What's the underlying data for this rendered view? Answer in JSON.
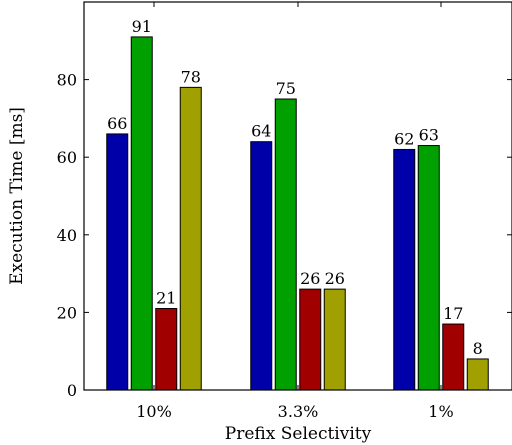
{
  "chart_data": {
    "type": "bar",
    "categories": [
      "10%",
      "3.3%",
      "1%"
    ],
    "series": [
      {
        "values": [
          66,
          64,
          62
        ],
        "color": "#0000a8"
      },
      {
        "values": [
          91,
          75,
          63
        ],
        "color": "#00a000"
      },
      {
        "values": [
          21,
          26,
          17
        ],
        "color": "#a00000"
      },
      {
        "values": [
          78,
          26,
          8
        ],
        "color": "#a0a000"
      }
    ],
    "data_labels": [
      [
        "66",
        "64",
        "62"
      ],
      [
        "91",
        "75",
        "63"
      ],
      [
        "21",
        "26",
        "17"
      ],
      [
        "78",
        "26",
        "8"
      ]
    ],
    "xlabel": "Prefix Selectivity",
    "ylabel": "Execution Time [ms]",
    "ylim": [
      0,
      100
    ],
    "yticks": [
      0,
      20,
      40,
      60,
      80
    ],
    "grid": false,
    "legend": "none"
  }
}
